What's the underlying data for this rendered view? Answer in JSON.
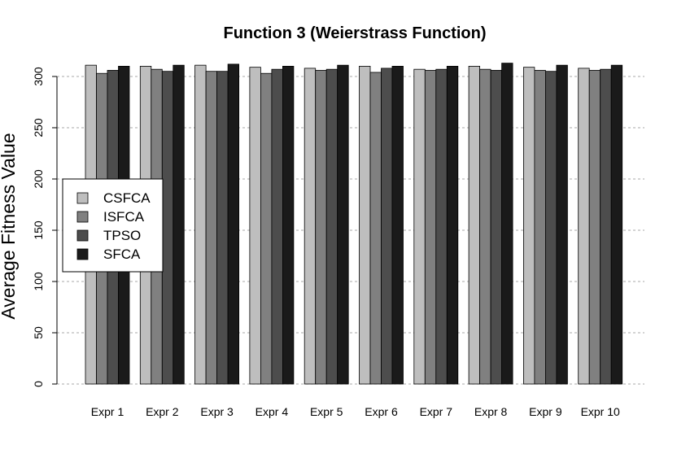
{
  "chart_data": {
    "type": "bar",
    "title": "Function 3 (Weierstrass Function)",
    "xlabel": "",
    "ylabel": "Average Fitness Value",
    "ylim": [
      0,
      315
    ],
    "yticks": [
      0,
      50,
      100,
      150,
      200,
      250,
      300
    ],
    "grid": true,
    "legend_position": "left",
    "categories": [
      "Expr 1",
      "Expr 2",
      "Expr 3",
      "Expr 4",
      "Expr 5",
      "Expr 6",
      "Expr 7",
      "Expr 8",
      "Expr 9",
      "Expr 10"
    ],
    "series": [
      {
        "name": "CSFCA",
        "color": "#bebebe",
        "values": [
          311,
          310,
          311,
          309,
          308,
          310,
          307,
          310,
          309,
          308
        ]
      },
      {
        "name": "ISFCA",
        "color": "#808080",
        "values": [
          303,
          307,
          305,
          303,
          306,
          304,
          306,
          307,
          306,
          306
        ]
      },
      {
        "name": "TPSO",
        "color": "#4d4d4d",
        "values": [
          306,
          305,
          305,
          307,
          307,
          308,
          307,
          306,
          305,
          307
        ]
      },
      {
        "name": "SFCA",
        "color": "#1a1a1a",
        "values": [
          310,
          311,
          312,
          310,
          311,
          310,
          310,
          313,
          311,
          311
        ]
      }
    ]
  }
}
